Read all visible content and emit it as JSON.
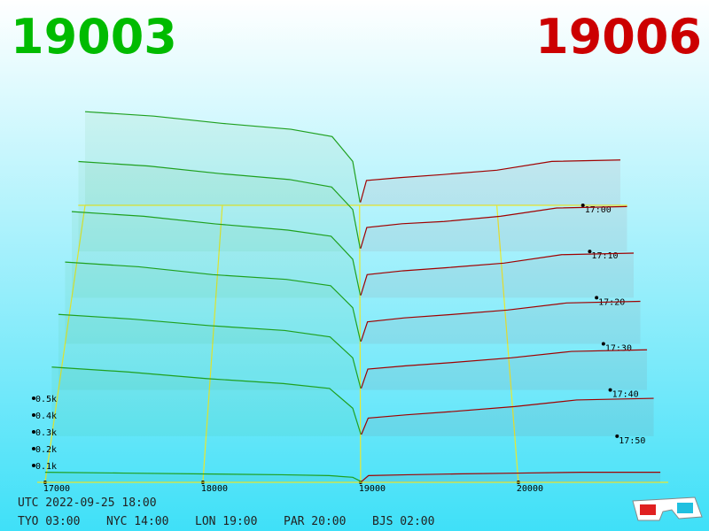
{
  "chart_data": {
    "type": "depth3d",
    "bid_price": 19003,
    "ask_price": 19006,
    "bid_color": "#1fa01f",
    "ask_color": "#a00000",
    "bid_label_color": "#00bb00",
    "ask_label_color": "#cc0000",
    "xlim": [
      16950,
      20950
    ],
    "xticks": [
      17000,
      18000,
      19000,
      20000
    ],
    "ylim": [
      0,
      600
    ],
    "yticks": [
      {
        "value": 100,
        "label": "0.1k"
      },
      {
        "value": 200,
        "label": "0.2k"
      },
      {
        "value": 300,
        "label": "0.3k"
      },
      {
        "value": 400,
        "label": "0.4k"
      },
      {
        "value": 500,
        "label": "0.5k"
      }
    ],
    "zlim": [
      0,
      60
    ],
    "zticks": [
      {
        "value": 0,
        "label": "17:00"
      },
      {
        "value": 10,
        "label": "17:10"
      },
      {
        "value": 20,
        "label": "17:20"
      },
      {
        "value": 30,
        "label": "17:30"
      },
      {
        "value": 40,
        "label": "17:40"
      },
      {
        "value": 50,
        "label": "17:50"
      }
    ],
    "bid_prices": [
      17000,
      17500,
      18000,
      18500,
      18800,
      18950,
      19003
    ],
    "ask_prices": [
      19006,
      19050,
      19300,
      19600,
      20000,
      20400,
      20900
    ],
    "snapshots": [
      {
        "minute": 0,
        "bids": [
          640,
          610,
          560,
          520,
          470,
          300,
          20
        ],
        "asks": [
          20,
          170,
          190,
          210,
          240,
          300,
          310
        ]
      },
      {
        "minute": 10,
        "bids": [
          600,
          570,
          520,
          480,
          430,
          280,
          20
        ],
        "asks": [
          20,
          160,
          185,
          200,
          235,
          290,
          300
        ]
      },
      {
        "minute": 20,
        "bids": [
          560,
          530,
          480,
          440,
          400,
          250,
          15
        ],
        "asks": [
          15,
          150,
          175,
          195,
          225,
          280,
          290
        ]
      },
      {
        "minute": 30,
        "bids": [
          520,
          490,
          440,
          410,
          370,
          230,
          15
        ],
        "asks": [
          15,
          140,
          165,
          185,
          215,
          260,
          270
        ]
      },
      {
        "minute": 40,
        "bids": [
          470,
          440,
          400,
          370,
          330,
          200,
          10
        ],
        "asks": [
          10,
          130,
          150,
          170,
          200,
          240,
          250
        ]
      },
      {
        "minute": 50,
        "bids": [
          420,
          390,
          350,
          320,
          290,
          170,
          10
        ],
        "asks": [
          10,
          110,
          130,
          150,
          180,
          220,
          230
        ]
      },
      {
        "minute": 60,
        "bids": [
          60,
          55,
          50,
          45,
          40,
          30,
          5
        ],
        "asks": [
          5,
          40,
          45,
          50,
          55,
          60,
          60
        ]
      }
    ],
    "footer": [
      "UTC 2022-09-25 18:00",
      "TYO 03:00",
      "NYC 14:00",
      "LON 19:00",
      "PAR 20:00",
      "BJS 02:00"
    ]
  }
}
